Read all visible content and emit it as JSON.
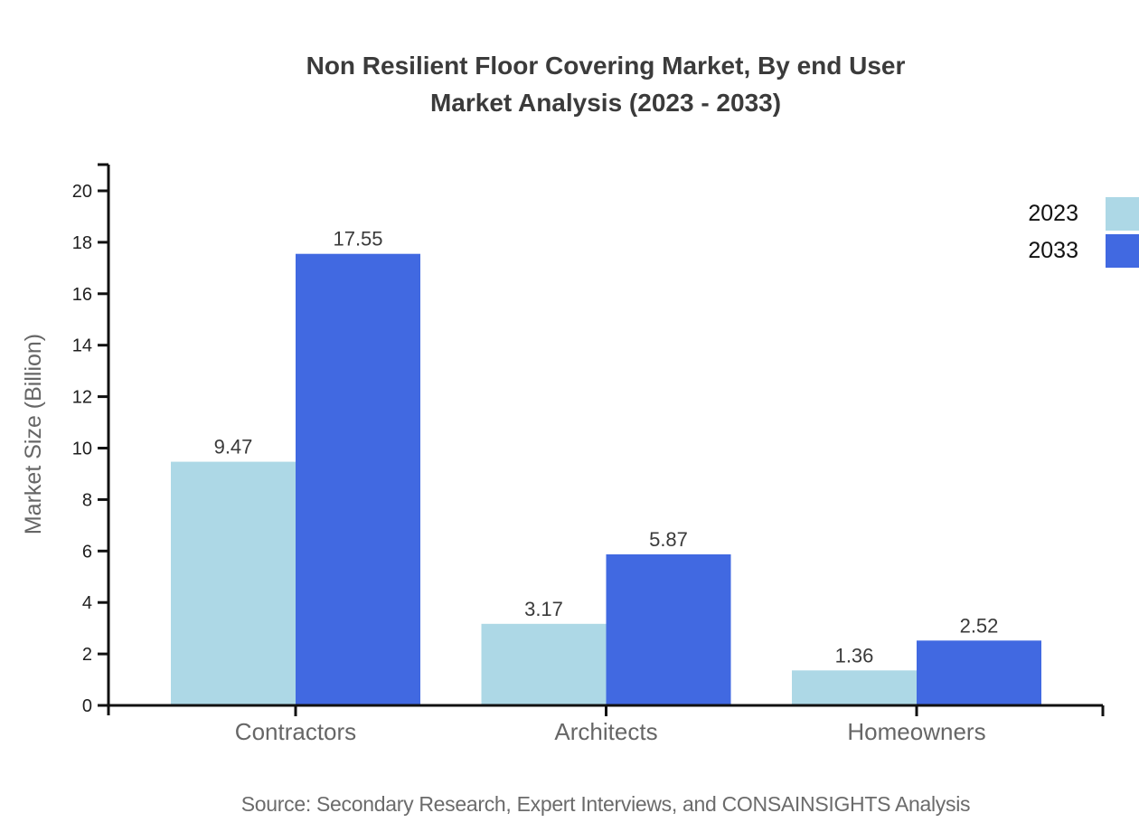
{
  "title": {
    "line1": "Non Resilient Floor Covering Market, By end User",
    "line2": "Market Analysis (2023 - 2033)"
  },
  "y_axis": {
    "label": "Market Size (Billion)"
  },
  "source": "Source: Secondary Research, Expert Interviews, and CONSAINSIGHTS Analysis",
  "legend": [
    {
      "label": "2023",
      "color": "#ADD8E6"
    },
    {
      "label": "2033",
      "color": "#4169E1"
    }
  ],
  "colors": {
    "series_2023": "#ADD8E6",
    "series_2033": "#4169E1",
    "axis": "#111111",
    "tick_label": "#1f1f1f",
    "value_label": "#3a3a3a",
    "category_label": "#666666"
  },
  "chart_data": {
    "type": "bar",
    "title": "Non Resilient Floor Covering Market, By end User Market Analysis (2023 - 2033)",
    "categories": [
      "Contractors",
      "Architects",
      "Homeowners"
    ],
    "series": [
      {
        "name": "2023",
        "color": "#ADD8E6",
        "values": [
          9.47,
          3.17,
          1.36
        ]
      },
      {
        "name": "2033",
        "color": "#4169E1",
        "values": [
          17.55,
          5.87,
          2.52
        ]
      }
    ],
    "xlabel": "",
    "ylabel": "Market Size (Billion)",
    "ylim": [
      0,
      21
    ],
    "yticks": [
      0,
      2,
      4,
      6,
      8,
      10,
      12,
      14,
      16,
      18,
      20
    ],
    "grid": false,
    "legend_position": "top-right",
    "value_labels_shown": true
  }
}
